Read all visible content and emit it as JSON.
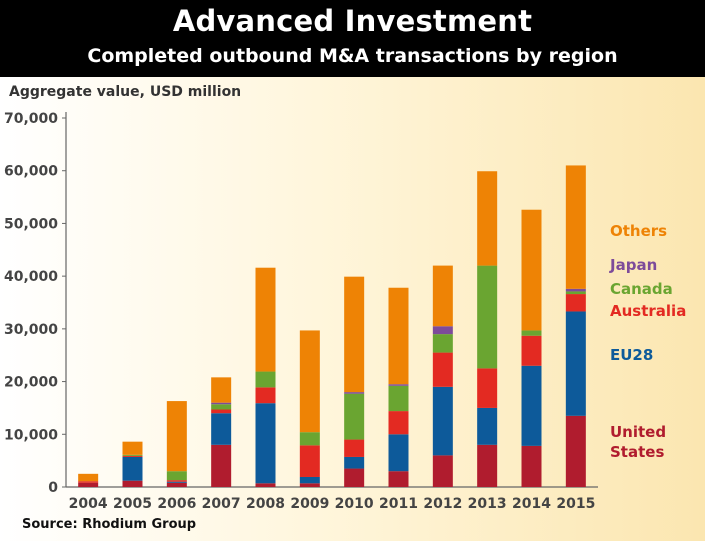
{
  "header": {
    "title": "Advanced Investment",
    "subtitle": "Completed outbound M&A transactions by region"
  },
  "axis": {
    "ylabel": "Aggregate value, USD million"
  },
  "footer": {
    "source": "Source: Rhodium Group"
  },
  "colors": {
    "United States": "#b01c2e",
    "EU28": "#0d5a9a",
    "Australia": "#e32a22",
    "Canada": "#6aa531",
    "Japan": "#7d4b9a",
    "Others": "#ee8305"
  },
  "chart_data": {
    "type": "bar",
    "stacked": true,
    "title": "Advanced Investment",
    "subtitle": "Completed outbound M&A transactions by region",
    "xlabel": "",
    "ylabel": "Aggregate value, USD million",
    "ylim": [
      0,
      70000
    ],
    "yticks": [
      0,
      10000,
      20000,
      30000,
      40000,
      50000,
      60000,
      70000
    ],
    "ytick_labels": [
      "0",
      "10,000",
      "20,000",
      "30,000",
      "40,000",
      "50,000",
      "60,000",
      "70,000"
    ],
    "legend_position": "right",
    "categories": [
      "2004",
      "2005",
      "2006",
      "2007",
      "2008",
      "2009",
      "2010",
      "2011",
      "2012",
      "2013",
      "2014",
      "2015"
    ],
    "series": [
      {
        "name": "United States",
        "values": [
          800,
          1200,
          800,
          8000,
          700,
          700,
          3500,
          3000,
          6000,
          8000,
          7800,
          13500
        ]
      },
      {
        "name": "EU28",
        "values": [
          0,
          4500,
          200,
          6000,
          15200,
          1200,
          2200,
          7000,
          13000,
          7000,
          15200,
          19800
        ]
      },
      {
        "name": "Australia",
        "values": [
          300,
          200,
          300,
          700,
          3000,
          6000,
          3300,
          4400,
          6500,
          7500,
          5700,
          3300
        ]
      },
      {
        "name": "Canada",
        "values": [
          0,
          200,
          1700,
          1000,
          3000,
          2500,
          8700,
          4800,
          3500,
          19500,
          1000,
          500
        ]
      },
      {
        "name": "Japan",
        "values": [
          0,
          0,
          0,
          300,
          0,
          0,
          300,
          300,
          1500,
          0,
          0,
          500
        ]
      },
      {
        "name": "Others",
        "values": [
          1400,
          2500,
          13300,
          4800,
          19700,
          19300,
          21900,
          18300,
          11500,
          17900,
          22900,
          23400
        ]
      }
    ],
    "legend_labels": [
      "Others",
      "Japan",
      "Canada",
      "Australia",
      "EU28",
      "United\nStates"
    ]
  }
}
